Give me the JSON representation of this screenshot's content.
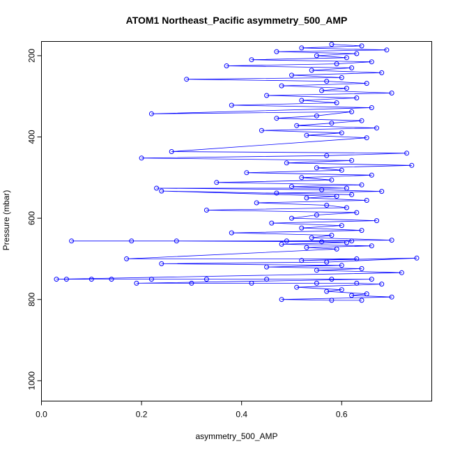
{
  "chart_data": {
    "type": "line",
    "title": "ATOM1 Northeast_Pacific asymmetry_500_AMP",
    "xlabel": "asymmetry_500_AMP",
    "ylabel": "Pressure (mbar)",
    "xlim": [
      0.0,
      0.78
    ],
    "ylim": [
      1050,
      165
    ],
    "y_reversed": true,
    "grid": false,
    "x_ticks": [
      0.0,
      0.2,
      0.4,
      0.6
    ],
    "x_tick_labels": [
      "0.0",
      "0.2",
      "0.4",
      "0.6"
    ],
    "y_ticks": [
      200,
      400,
      600,
      800,
      1000
    ],
    "y_tick_labels": [
      "200",
      "400",
      "600",
      "800",
      "1000"
    ],
    "colors": {
      "series": "#0000ff"
    },
    "series": [
      {
        "marker": "open-circle",
        "x": [
          0.58,
          0.64,
          0.52,
          0.69,
          0.47,
          0.63,
          0.55,
          0.61,
          0.42,
          0.66,
          0.59,
          0.37,
          0.62,
          0.54,
          0.68,
          0.5,
          0.6,
          0.29,
          0.57,
          0.65,
          0.48,
          0.61,
          0.56,
          0.7,
          0.45,
          0.63,
          0.52,
          0.59,
          0.38,
          0.66,
          0.22,
          0.62,
          0.55,
          0.47,
          0.64,
          0.58,
          0.51,
          0.67,
          0.44,
          0.6,
          0.53,
          0.65,
          0.26,
          0.73,
          0.57,
          0.2,
          0.62,
          0.49,
          0.74,
          0.55,
          0.6,
          0.41,
          0.66,
          0.52,
          0.58,
          0.35,
          0.64,
          0.5,
          0.61,
          0.23,
          0.56,
          0.68,
          0.47,
          0.62,
          0.24,
          0.59,
          0.53,
          0.65,
          0.43,
          0.57,
          0.61,
          0.33,
          0.63,
          0.55,
          0.5,
          0.67,
          0.46,
          0.6,
          0.52,
          0.64,
          0.38,
          0.58,
          0.54,
          0.7,
          0.49,
          0.62,
          0.06,
          0.18,
          0.27,
          0.56,
          0.61,
          0.48,
          0.66,
          0.53,
          0.59,
          0.17,
          0.63,
          0.52,
          0.75,
          0.57,
          0.24,
          0.6,
          0.45,
          0.64,
          0.55,
          0.72,
          0.03,
          0.05,
          0.1,
          0.14,
          0.22,
          0.33,
          0.45,
          0.58,
          0.66,
          0.19,
          0.3,
          0.42,
          0.55,
          0.63,
          0.68,
          0.51,
          0.6,
          0.57,
          0.65,
          0.62,
          0.7,
          0.48,
          0.58,
          0.64
        ],
        "y": [
          172,
          176,
          181,
          186,
          190,
          195,
          200,
          205,
          210,
          215,
          220,
          225,
          230,
          236,
          242,
          248,
          254,
          258,
          263,
          268,
          274,
          280,
          286,
          292,
          298,
          304,
          310,
          316,
          322,
          328,
          343,
          338,
          348,
          354,
          360,
          366,
          372,
          378,
          384,
          390,
          396,
          402,
          436,
          440,
          446,
          452,
          458,
          464,
          470,
          476,
          482,
          488,
          494,
          500,
          506,
          512,
          518,
          522,
          526,
          526,
          530,
          534,
          538,
          542,
          533,
          546,
          550,
          556,
          562,
          568,
          574,
          580,
          586,
          592,
          600,
          606,
          612,
          618,
          624,
          630,
          636,
          642,
          648,
          654,
          656,
          656,
          656,
          656,
          656,
          658,
          660,
          664,
          668,
          672,
          676,
          700,
          700,
          704,
          698,
          708,
          712,
          716,
          720,
          724,
          728,
          734,
          750,
          750,
          750,
          750,
          750,
          750,
          750,
          750,
          750,
          760,
          760,
          760,
          760,
          760,
          762,
          770,
          776,
          780,
          786,
          790,
          794,
          800,
          802,
          802
        ]
      }
    ]
  }
}
